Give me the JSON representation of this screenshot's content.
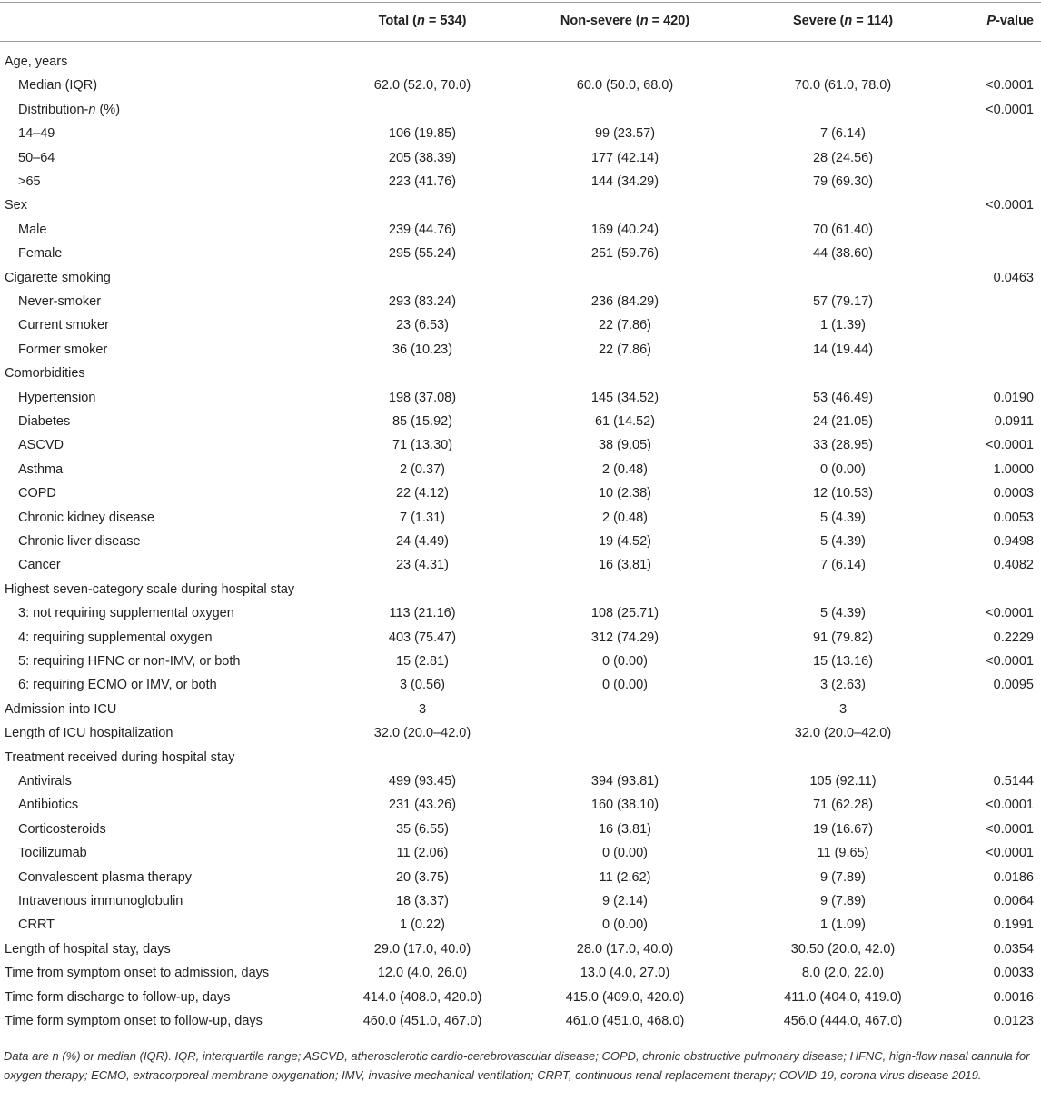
{
  "table": {
    "header": [
      [
        "Total (",
        "n",
        " = 534)"
      ],
      [
        "Non-severe (",
        "n",
        " = 420)"
      ],
      [
        "Severe (",
        "n",
        " = 114)"
      ],
      [
        "",
        "P",
        "-value"
      ]
    ],
    "rows": [
      {
        "indent": 0,
        "cells": [
          "Age, years",
          null,
          null,
          null,
          null
        ]
      },
      {
        "indent": 1,
        "cells": [
          "Median (IQR)",
          "62.0 (52.0, 70.0)",
          "60.0 (50.0, 68.0)",
          "70.0 (61.0, 78.0)",
          "<0.0001"
        ]
      },
      {
        "indent": 1,
        "cells": [
          [
            "Distribution-",
            "n",
            " (%)"
          ],
          null,
          null,
          null,
          "<0.0001"
        ]
      },
      {
        "indent": 1,
        "cells": [
          "14–49",
          "106 (19.85)",
          "99 (23.57)",
          "7 (6.14)",
          null
        ]
      },
      {
        "indent": 1,
        "cells": [
          "50–64",
          "205 (38.39)",
          "177 (42.14)",
          "28 (24.56)",
          null
        ]
      },
      {
        "indent": 1,
        "cells": [
          ">65",
          "223 (41.76)",
          "144 (34.29)",
          "79 (69.30)",
          null
        ]
      },
      {
        "indent": 0,
        "cells": [
          "Sex",
          null,
          null,
          null,
          "<0.0001"
        ]
      },
      {
        "indent": 1,
        "cells": [
          "Male",
          "239 (44.76)",
          "169 (40.24)",
          "70 (61.40)",
          null
        ]
      },
      {
        "indent": 1,
        "cells": [
          "Female",
          "295 (55.24)",
          "251 (59.76)",
          "44 (38.60)",
          null
        ]
      },
      {
        "indent": 0,
        "cells": [
          "Cigarette smoking",
          null,
          null,
          null,
          "0.0463"
        ]
      },
      {
        "indent": 1,
        "cells": [
          "Never-smoker",
          "293 (83.24)",
          "236 (84.29)",
          "57 (79.17)",
          null
        ]
      },
      {
        "indent": 1,
        "cells": [
          "Current smoker",
          "23 (6.53)",
          "22 (7.86)",
          "1 (1.39)",
          null
        ]
      },
      {
        "indent": 1,
        "cells": [
          "Former smoker",
          "36 (10.23)",
          "22 (7.86)",
          "14 (19.44)",
          null
        ]
      },
      {
        "indent": 0,
        "cells": [
          "Comorbidities",
          null,
          null,
          null,
          null
        ]
      },
      {
        "indent": 1,
        "cells": [
          "Hypertension",
          "198 (37.08)",
          "145 (34.52)",
          "53 (46.49)",
          "0.0190"
        ]
      },
      {
        "indent": 1,
        "cells": [
          "Diabetes",
          "85 (15.92)",
          "61 (14.52)",
          "24 (21.05)",
          "0.0911"
        ]
      },
      {
        "indent": 1,
        "cells": [
          "ASCVD",
          "71 (13.30)",
          "38 (9.05)",
          "33 (28.95)",
          "<0.0001"
        ]
      },
      {
        "indent": 1,
        "cells": [
          "Asthma",
          "2 (0.37)",
          "2 (0.48)",
          "0 (0.00)",
          "1.0000"
        ]
      },
      {
        "indent": 1,
        "cells": [
          "COPD",
          "22 (4.12)",
          "10 (2.38)",
          "12 (10.53)",
          "0.0003"
        ]
      },
      {
        "indent": 1,
        "cells": [
          "Chronic kidney disease",
          "7 (1.31)",
          "2 (0.48)",
          "5 (4.39)",
          "0.0053"
        ]
      },
      {
        "indent": 1,
        "cells": [
          "Chronic liver disease",
          "24 (4.49)",
          "19 (4.52)",
          "5 (4.39)",
          "0.9498"
        ]
      },
      {
        "indent": 1,
        "cells": [
          "Cancer",
          "23 (4.31)",
          "16 (3.81)",
          "7 (6.14)",
          "0.4082"
        ]
      },
      {
        "indent": 0,
        "cells": [
          "Highest seven-category scale during hospital stay",
          null,
          null,
          null,
          null
        ]
      },
      {
        "indent": 1,
        "cells": [
          "3: not requiring supplemental oxygen",
          "113 (21.16)",
          "108 (25.71)",
          "5 (4.39)",
          "<0.0001"
        ]
      },
      {
        "indent": 1,
        "cells": [
          "4: requiring supplemental oxygen",
          "403 (75.47)",
          "312 (74.29)",
          "91 (79.82)",
          "0.2229"
        ]
      },
      {
        "indent": 1,
        "cells": [
          "5: requiring HFNC or non-IMV, or both",
          "15 (2.81)",
          "0 (0.00)",
          "15 (13.16)",
          "<0.0001"
        ]
      },
      {
        "indent": 1,
        "cells": [
          "6: requiring ECMO or IMV, or both",
          "3 (0.56)",
          "0 (0.00)",
          "3 (2.63)",
          "0.0095"
        ]
      },
      {
        "indent": 0,
        "cells": [
          "Admission into ICU",
          "3",
          null,
          "3",
          null
        ]
      },
      {
        "indent": 0,
        "cells": [
          "Length of ICU hospitalization",
          "32.0 (20.0–42.0)",
          null,
          "32.0 (20.0–42.0)",
          null
        ]
      },
      {
        "indent": 0,
        "cells": [
          "Treatment received during hospital stay",
          null,
          null,
          null,
          null
        ]
      },
      {
        "indent": 1,
        "cells": [
          "Antivirals",
          "499 (93.45)",
          "394 (93.81)",
          "105 (92.11)",
          "0.5144"
        ]
      },
      {
        "indent": 1,
        "cells": [
          "Antibiotics",
          "231 (43.26)",
          "160 (38.10)",
          "71 (62.28)",
          "<0.0001"
        ]
      },
      {
        "indent": 1,
        "cells": [
          "Corticosteroids",
          "35 (6.55)",
          "16 (3.81)",
          "19 (16.67)",
          "<0.0001"
        ]
      },
      {
        "indent": 1,
        "cells": [
          "Tocilizumab",
          "11 (2.06)",
          "0 (0.00)",
          "11 (9.65)",
          "<0.0001"
        ]
      },
      {
        "indent": 1,
        "cells": [
          "Convalescent plasma therapy",
          "20 (3.75)",
          "11 (2.62)",
          "9 (7.89)",
          "0.0186"
        ]
      },
      {
        "indent": 1,
        "cells": [
          "Intravenous immunoglobulin",
          "18 (3.37)",
          "9 (2.14)",
          "9 (7.89)",
          "0.0064"
        ]
      },
      {
        "indent": 1,
        "cells": [
          "CRRT",
          "1 (0.22)",
          "0 (0.00)",
          "1 (1.09)",
          "0.1991"
        ]
      },
      {
        "indent": 0,
        "cells": [
          "Length of hospital stay, days",
          "29.0 (17.0, 40.0)",
          "28.0 (17.0, 40.0)",
          "30.50 (20.0, 42.0)",
          "0.0354"
        ]
      },
      {
        "indent": 0,
        "cells": [
          "Time from symptom onset to admission, days",
          "12.0 (4.0, 26.0)",
          "13.0 (4.0, 27.0)",
          "8.0 (2.0, 22.0)",
          "0.0033"
        ]
      },
      {
        "indent": 0,
        "cells": [
          "Time form discharge to follow-up, days",
          "414.0 (408.0, 420.0)",
          "415.0 (409.0, 420.0)",
          "411.0 (404.0, 419.0)",
          "0.0016"
        ]
      },
      {
        "indent": 0,
        "cells": [
          "Time form symptom onset to follow-up, days",
          "460.0 (451.0, 467.0)",
          "461.0 (451.0, 468.0)",
          "456.0 (444.0, 467.0)",
          "0.0123"
        ]
      }
    ],
    "footnote": "Data are n (%) or median (IQR). IQR, interquartile range; ASCVD, atherosclerotic cardio-cerebrovascular disease; COPD, chronic obstructive pulmonary disease; HFNC, high-flow nasal cannula for oxygen therapy; ECMO, extracorporeal membrane oxygenation; IMV, invasive mechanical ventilation; CRRT, continuous renal replacement therapy; COVID-19, corona virus disease 2019."
  }
}
